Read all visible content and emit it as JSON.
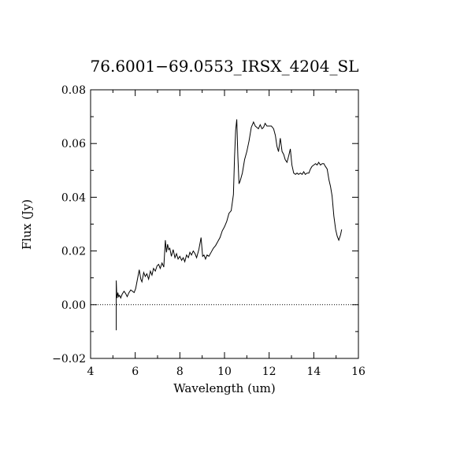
{
  "chart_data": {
    "type": "line",
    "title": "76.6001−69.0553_IRSX_4204_SL",
    "xlabel": "Wavelength (um)",
    "ylabel": "Flux (Jy)",
    "xlim": [
      4,
      16
    ],
    "ylim": [
      -0.02,
      0.08
    ],
    "x_ticks": [
      4,
      6,
      8,
      10,
      12,
      14,
      16
    ],
    "y_ticks": [
      -0.02,
      0.0,
      0.02,
      0.04,
      0.06,
      0.08
    ],
    "x_tick_labels": [
      "4",
      "6",
      "8",
      "10",
      "12",
      "14",
      "16"
    ],
    "y_tick_labels": [
      "−0.02",
      "0.00",
      "0.02",
      "0.04",
      "0.06",
      "0.08"
    ],
    "reference_line": {
      "y": 0.0,
      "style": "dotted"
    },
    "series": [
      {
        "x": [
          5.15,
          5.15,
          5.17,
          5.19,
          5.22,
          5.26,
          5.3,
          5.35,
          5.42,
          5.5,
          5.58,
          5.64,
          5.72,
          5.8,
          5.88,
          5.95,
          6.02,
          6.1,
          6.18,
          6.25,
          6.3,
          6.38,
          6.45,
          6.52,
          6.6,
          6.68,
          6.75,
          6.82,
          6.9,
          6.98,
          7.05,
          7.12,
          7.2,
          7.28,
          7.35,
          7.4,
          7.45,
          7.5,
          7.55,
          7.62,
          7.7,
          7.78,
          7.85,
          7.92,
          8.0,
          8.08,
          8.15,
          8.22,
          8.3,
          8.38,
          8.45,
          8.52,
          8.6,
          8.68,
          8.75,
          8.85,
          8.95,
          9.02,
          9.08,
          9.15,
          9.22,
          9.3,
          9.4,
          9.5,
          9.6,
          9.7,
          9.8,
          9.9,
          10.0,
          10.1,
          10.2,
          10.3,
          10.4,
          10.45,
          10.5,
          10.55,
          10.6,
          10.65,
          10.7,
          10.8,
          10.9,
          11.0,
          11.1,
          11.2,
          11.3,
          11.38,
          11.45,
          11.52,
          11.6,
          11.68,
          11.75,
          11.82,
          11.9,
          12.0,
          12.1,
          12.2,
          12.28,
          12.35,
          12.42,
          12.5,
          12.58,
          12.65,
          12.72,
          12.8,
          12.88,
          12.95,
          13.02,
          13.1,
          13.18,
          13.25,
          13.32,
          13.4,
          13.48,
          13.55,
          13.62,
          13.7,
          13.78,
          13.85,
          13.92,
          14.0,
          14.08,
          14.15,
          14.22,
          14.3,
          14.38,
          14.45,
          14.52,
          14.6,
          14.68,
          14.75,
          14.82,
          14.9,
          14.98,
          15.05,
          15.12,
          15.2,
          15.25
        ],
        "y": [
          -0.0095,
          0.009,
          0.004,
          0.0025,
          0.0045,
          0.003,
          0.0035,
          0.0025,
          0.004,
          0.005,
          0.004,
          0.003,
          0.0045,
          0.0055,
          0.005,
          0.0045,
          0.006,
          0.0095,
          0.013,
          0.0095,
          0.0085,
          0.012,
          0.0105,
          0.0115,
          0.0095,
          0.0125,
          0.011,
          0.0135,
          0.0125,
          0.0145,
          0.015,
          0.0135,
          0.0155,
          0.014,
          0.024,
          0.0195,
          0.0225,
          0.0205,
          0.021,
          0.018,
          0.0205,
          0.0175,
          0.019,
          0.017,
          0.018,
          0.0165,
          0.0175,
          0.016,
          0.0185,
          0.0175,
          0.0195,
          0.0185,
          0.02,
          0.019,
          0.0175,
          0.0205,
          0.025,
          0.018,
          0.0185,
          0.017,
          0.0185,
          0.018,
          0.0195,
          0.021,
          0.022,
          0.0235,
          0.025,
          0.0275,
          0.029,
          0.031,
          0.034,
          0.035,
          0.041,
          0.055,
          0.065,
          0.069,
          0.055,
          0.045,
          0.046,
          0.049,
          0.054,
          0.057,
          0.061,
          0.066,
          0.068,
          0.0665,
          0.066,
          0.0655,
          0.067,
          0.0655,
          0.066,
          0.0675,
          0.0665,
          0.0665,
          0.0665,
          0.0655,
          0.063,
          0.059,
          0.057,
          0.062,
          0.057,
          0.056,
          0.054,
          0.053,
          0.0555,
          0.058,
          0.052,
          0.049,
          0.0485,
          0.049,
          0.0485,
          0.049,
          0.0485,
          0.0495,
          0.0485,
          0.049,
          0.049,
          0.0505,
          0.0515,
          0.052,
          0.0525,
          0.052,
          0.053,
          0.052,
          0.0525,
          0.0525,
          0.0515,
          0.0505,
          0.0465,
          0.044,
          0.0405,
          0.033,
          0.028,
          0.0255,
          0.024,
          0.026,
          0.028
        ]
      }
    ]
  }
}
